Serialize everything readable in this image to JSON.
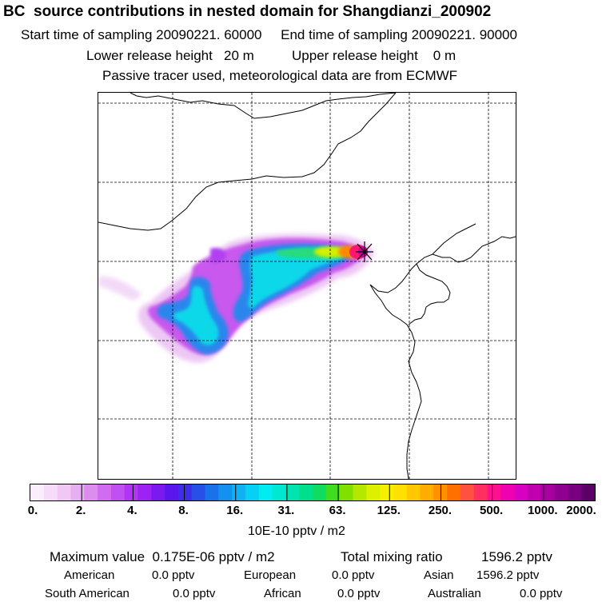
{
  "header": {
    "title": "BC  source contributions in nested domain for Shangdianzi_200902",
    "start_label": "Start time of sampling",
    "start_value": "20090221. 60000",
    "end_label": "End time of sampling",
    "end_value": "20090221. 90000",
    "lower_label": "Lower release height",
    "lower_value": "20 m",
    "upper_label": "Upper release height",
    "upper_value": "0 m",
    "note": "Passive tracer used, meteorological data are from ECMWF"
  },
  "colorbar": {
    "ticks": [
      "0.",
      "2.",
      "4.",
      "8.",
      "16.",
      "31.",
      "63.",
      "125.",
      "250.",
      "500.",
      "1000.",
      "2000."
    ],
    "colors": [
      "#fbeefc",
      "#f6dcf8",
      "#f1c8f5",
      "#e8aef2",
      "#dd8cef",
      "#d06cf0",
      "#c14ff2",
      "#b035f4",
      "#9d22f4",
      "#7a1af0",
      "#5a16ec",
      "#3c2ee8",
      "#2850e8",
      "#1a72ea",
      "#1292ee",
      "#10b0f2",
      "#08d0f4",
      "#00ecf0",
      "#00e8d0",
      "#00e4b0",
      "#00e08c",
      "#10dc60",
      "#40dc20",
      "#80e000",
      "#b4e800",
      "#dcf000",
      "#f4f000",
      "#ffe000",
      "#ffc800",
      "#ffae00",
      "#ff9000",
      "#ff7000",
      "#ff5040",
      "#ff3060",
      "#ff1090",
      "#f000b0",
      "#d800c0",
      "#c000b0",
      "#a800a0",
      "#900090",
      "#780080",
      "#5c0068"
    ],
    "unit": "10E-10 pptv / m2"
  },
  "stats": {
    "max_label": "Maximum value",
    "max_value": "0.175E-06 pptv / m2",
    "total_label": "Total mixing ratio",
    "total_value": "1596.2 pptv"
  },
  "regions": [
    {
      "name": "American",
      "value": "0.0 pptv"
    },
    {
      "name": "European",
      "value": "0.0 pptv"
    },
    {
      "name": "Asian",
      "value": "1596.2 pptv"
    },
    {
      "name": "South American",
      "value": "0.0 pptv"
    },
    {
      "name": "African",
      "value": "0.0 pptv"
    },
    {
      "name": "Australian",
      "value": "0.0 pptv"
    }
  ]
}
